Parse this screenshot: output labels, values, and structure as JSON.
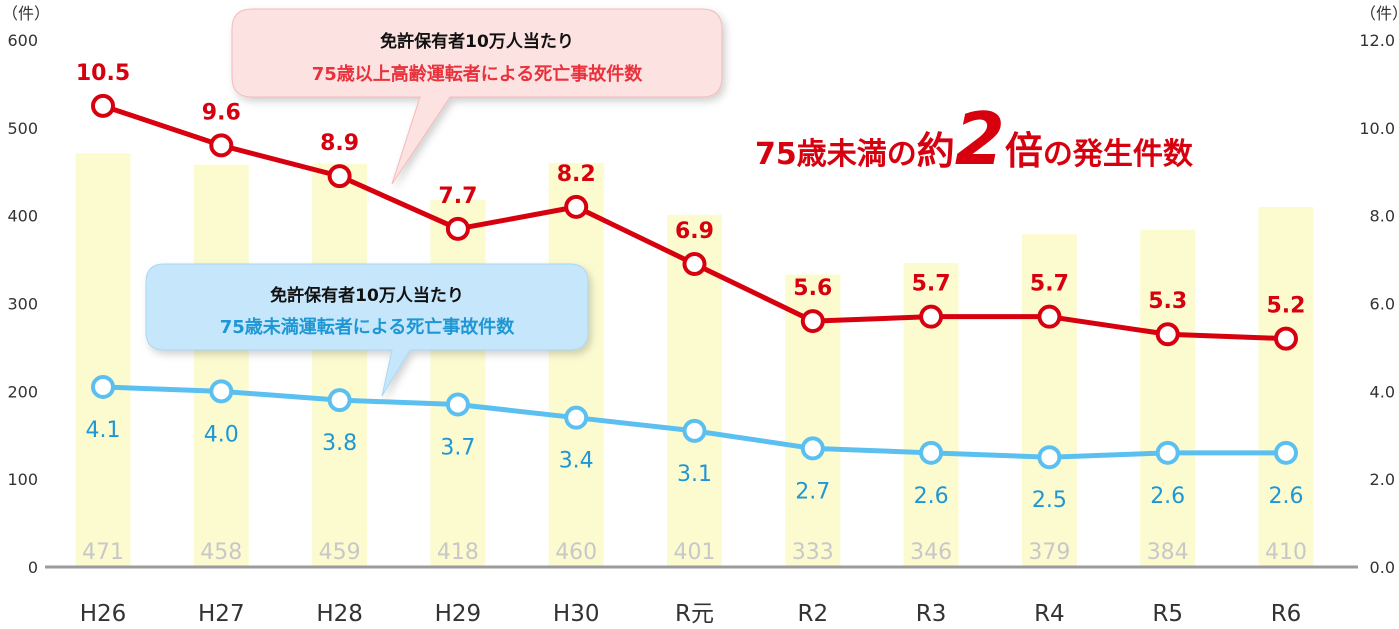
{
  "chart_data": {
    "type": "bar+line",
    "categories": [
      "H26",
      "H27",
      "H28",
      "H29",
      "H30",
      "R元",
      "R2",
      "R3",
      "R4",
      "R5",
      "R6"
    ],
    "bars": {
      "values": [
        471,
        458,
        459,
        418,
        460,
        401,
        333,
        346,
        379,
        384,
        410
      ],
      "color": "#fcfbd0"
    },
    "series": [
      {
        "name": "75歳以上高齢運転者による死亡事故件数",
        "values": [
          10.5,
          9.6,
          8.9,
          7.7,
          8.2,
          6.9,
          5.6,
          5.7,
          5.7,
          5.3,
          5.2
        ],
        "color": "#d7000f"
      },
      {
        "name": "75歳未満運転者による死亡事故件数",
        "values": [
          4.1,
          4.0,
          3.8,
          3.7,
          3.4,
          3.1,
          2.7,
          2.6,
          2.5,
          2.6,
          2.6
        ],
        "color": "#5bc0f0"
      }
    ],
    "left_axis": {
      "unit": "（件）",
      "ticks": [
        0,
        100,
        200,
        300,
        400,
        500,
        600
      ],
      "ylim": [
        0,
        600
      ]
    },
    "right_axis": {
      "unit": "（件）",
      "ticks": [
        "0.0",
        "2.0",
        "4.0",
        "6.0",
        "8.0",
        "10.0",
        "12.0"
      ],
      "ylim": [
        0,
        12
      ]
    },
    "callouts": [
      {
        "line1": "免許保有者10万人当たり",
        "line2": "75歳以上高齢運転者による死亡事故件数",
        "color": "#e8323c",
        "fill": "#fde2e2"
      },
      {
        "line1": "免許保有者10万人当たり",
        "line2": "75歳未満運転者による死亡事故件数",
        "color": "#1f97d4",
        "fill": "#c6e7fb"
      }
    ],
    "headline": {
      "part1": "75歳未満の",
      "part2": "約",
      "part3": "2",
      "part4": "倍",
      "part5": "の発生件数"
    }
  }
}
